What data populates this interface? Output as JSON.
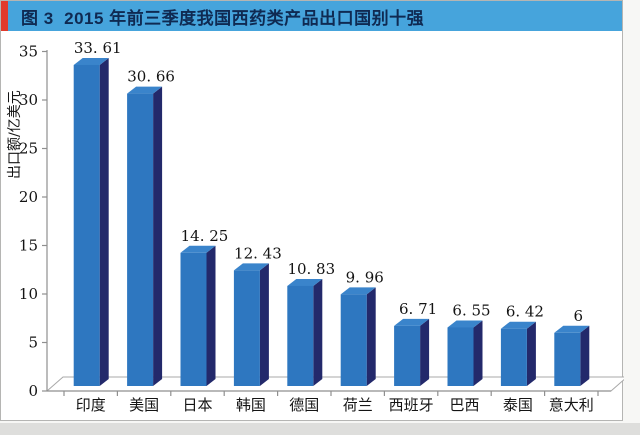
{
  "header": {
    "title": "图 3  2015 年前三季度我国西药类产品出口国别十强",
    "accent_color": "#e03a2b",
    "bar_color": "#46a4dc",
    "text_color": "#0f2a52"
  },
  "chart_data": {
    "type": "bar",
    "style": "3d-column",
    "title": "2015 年前三季度我国西药类产品出口国别十强",
    "categories": [
      "印度",
      "美国",
      "日本",
      "韩国",
      "德国",
      "荷兰",
      "西班牙",
      "巴西",
      "泰国",
      "意大利"
    ],
    "values": [
      33.61,
      30.66,
      14.25,
      12.43,
      10.83,
      9.96,
      6.71,
      6.55,
      6.42,
      6
    ],
    "value_labels": [
      "33. 61",
      "30. 66",
      "14. 25",
      "12. 43",
      "10. 83",
      "9. 96",
      "6. 71",
      "6. 55",
      "6. 42",
      "6"
    ],
    "xlabel": "",
    "ylabel": "出口额/亿美元",
    "ylim": [
      0,
      35
    ],
    "yticks": [
      0,
      5,
      10,
      15,
      20,
      25,
      30,
      35
    ],
    "grid": false,
    "legend": "none",
    "colors": {
      "bar_front": "#2e77c0",
      "bar_side": "#23296b",
      "bar_top": "#3a84cb",
      "axis": "#8f8f8f",
      "text": "#141414",
      "floor_fill": "#ffffff",
      "floor_stroke": "#a8a8a8"
    }
  }
}
